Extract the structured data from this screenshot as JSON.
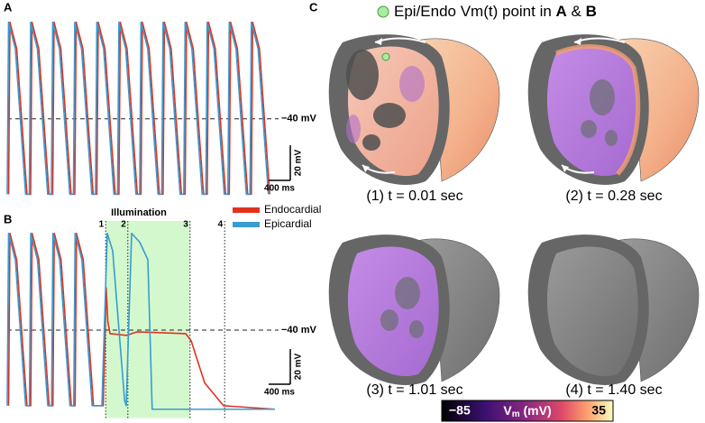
{
  "panel_labels": [
    "A",
    "B",
    "C"
  ],
  "chart_data": [
    {
      "type": "line",
      "xlim": [
        0,
        4950
      ],
      "ylim": [
        -90,
        20
      ],
      "reference_line": {
        "value": -40,
        "label": "−40 mV"
      },
      "scalebar": {
        "x": 400,
        "x_label": "400 ms",
        "y": 20,
        "y_label": "20 mV"
      },
      "series": [
        {
          "name": "Endocardial",
          "color": "#e0321e",
          "x": [
            25,
            50,
            175,
            365,
            433,
            458,
            583,
            773,
            841,
            866,
            991,
            1181,
            1249,
            1274,
            1399,
            1589,
            1657,
            1682,
            1807,
            1997,
            2065,
            2090,
            2215,
            2405,
            2473,
            2498,
            2623,
            2813,
            2881,
            2906,
            3031,
            3221,
            3289,
            3314,
            3439,
            3629,
            3697,
            3722,
            3847,
            4037,
            4105,
            4130,
            4255,
            4445,
            4513,
            4538,
            4663,
            4853
          ],
          "values": [
            -83,
            15,
            0,
            -83,
            -83,
            15,
            0,
            -83,
            -83,
            15,
            0,
            -83,
            -83,
            15,
            0,
            -83,
            -83,
            15,
            0,
            -83,
            -83,
            15,
            0,
            -83,
            -83,
            15,
            0,
            -83,
            -83,
            15,
            0,
            -83,
            -83,
            15,
            0,
            -83,
            -83,
            15,
            0,
            -83,
            -83,
            15,
            0,
            -83,
            -83,
            15,
            0,
            -83
          ]
        },
        {
          "name": "Epicardial",
          "color": "#3a9bd0",
          "x": [
            0,
            25,
            150,
            340,
            408,
            433,
            558,
            748,
            816,
            841,
            966,
            1156,
            1224,
            1249,
            1374,
            1564,
            1632,
            1657,
            1782,
            1972,
            2040,
            2065,
            2190,
            2380,
            2448,
            2473,
            2598,
            2788,
            2856,
            2881,
            3006,
            3196,
            3264,
            3289,
            3414,
            3604,
            3672,
            3697,
            3822,
            4012,
            4080,
            4105,
            4230,
            4420,
            4488,
            4513,
            4638,
            4828
          ],
          "values": [
            -83,
            15,
            0,
            -83,
            -83,
            15,
            0,
            -83,
            -83,
            15,
            0,
            -83,
            -83,
            15,
            0,
            -83,
            -83,
            15,
            0,
            -83,
            -83,
            15,
            0,
            -83,
            -83,
            15,
            0,
            -83,
            -83,
            15,
            0,
            -83,
            -83,
            15,
            0,
            -83,
            -83,
            15,
            0,
            -83,
            -83,
            15,
            0,
            -83,
            -83,
            15,
            0,
            -83
          ]
        }
      ]
    },
    {
      "type": "line",
      "xlim": [
        0,
        4950
      ],
      "ylim": [
        -90,
        20
      ],
      "reference_line": {
        "value": -40,
        "label": "−40 mV"
      },
      "scalebar": {
        "x": 400,
        "x_label": "400 ms",
        "y": 20,
        "y_label": "20 mV"
      },
      "illumination": {
        "label": "Illumination",
        "span": [
          1820,
          3380
        ]
      },
      "markers": [
        {
          "x": 1820,
          "label": "1"
        },
        {
          "x": 2230,
          "label": "2"
        },
        {
          "x": 3380,
          "label": "3"
        },
        {
          "x": 4020,
          "label": "4"
        }
      ],
      "legend": "upper right",
      "series": [
        {
          "name": "Endocardial",
          "color": "#e0321e",
          "x": [
            25,
            50,
            175,
            365,
            435,
            460,
            585,
            775,
            845,
            870,
            995,
            1185,
            1255,
            1280,
            1405,
            1595,
            1775,
            1830,
            1860,
            1900,
            2200,
            2400,
            3300,
            3400,
            3650,
            4000,
            4950
          ],
          "values": [
            -83,
            15,
            0,
            -83,
            -83,
            15,
            0,
            -83,
            -83,
            15,
            0,
            -83,
            -83,
            15,
            0,
            -83,
            -83,
            -16,
            -35,
            -42,
            -43,
            -41,
            -42,
            -46,
            -70,
            -83,
            -85
          ]
        },
        {
          "name": "Epicardial",
          "color": "#3a9bd0",
          "x": [
            0,
            25,
            150,
            340,
            410,
            435,
            560,
            750,
            820,
            845,
            970,
            1160,
            1230,
            1255,
            1380,
            1570,
            1750,
            1850,
            1950,
            2170,
            2200,
            2300,
            2450,
            2600,
            2680,
            4950
          ],
          "values": [
            -83,
            15,
            0,
            -83,
            -83,
            15,
            0,
            -83,
            -83,
            15,
            0,
            -83,
            -83,
            15,
            0,
            -83,
            -83,
            15,
            5,
            -80,
            -83,
            15,
            10,
            0,
            -85,
            -85
          ]
        }
      ]
    }
  ],
  "panel_c": {
    "legend_text": [
      "Epi/Endo Vm(t) point in ",
      "A",
      " & ",
      "B"
    ],
    "frames": [
      {
        "caption": "(1) t = 0.01 sec"
      },
      {
        "caption": "(2) t = 0.28 sec"
      },
      {
        "caption": "(3) t = 1.01 sec"
      },
      {
        "caption": "(4) t = 1.40 sec"
      }
    ],
    "colorbar": {
      "min": {
        "value": -85,
        "label": "−85"
      },
      "max": 35,
      "label": [
        "V",
        "m",
        " (mV)"
      ]
    }
  }
}
